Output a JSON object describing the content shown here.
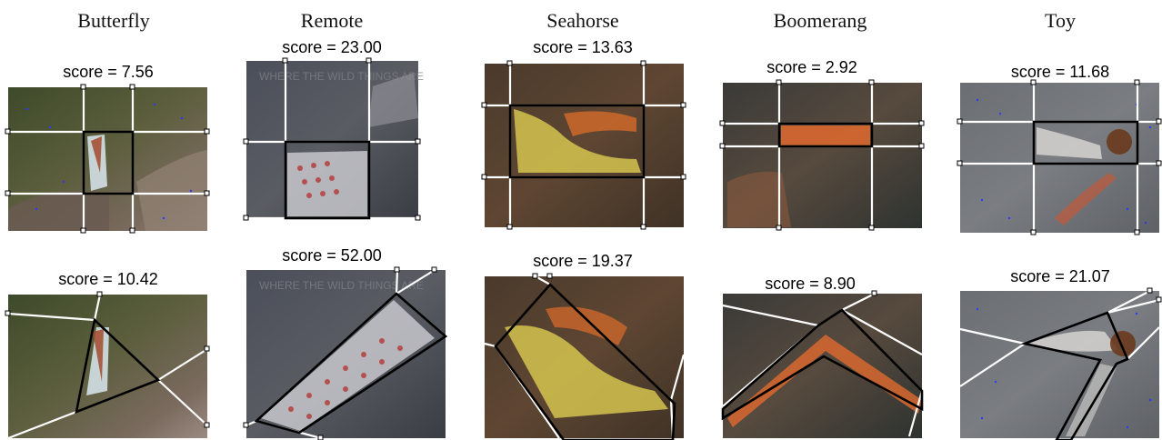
{
  "columns": [
    "Butterfly",
    "Remote",
    "Seahorse",
    "Boomerang",
    "Toy"
  ],
  "rows": [
    {
      "scores": [
        "score = 7.56",
        "score = 23.00",
        "score = 13.63",
        "score = 2.92",
        "score = 11.68"
      ]
    },
    {
      "scores": [
        "score = 10.42",
        "score = 52.00",
        "score = 19.37",
        "score = 8.90",
        "score = 21.07"
      ]
    }
  ],
  "colors": {
    "grid_line": "#ffffff",
    "box_outline": "#000000",
    "blue_points": "#2a3bff",
    "red_points": "#ff3b2f"
  }
}
